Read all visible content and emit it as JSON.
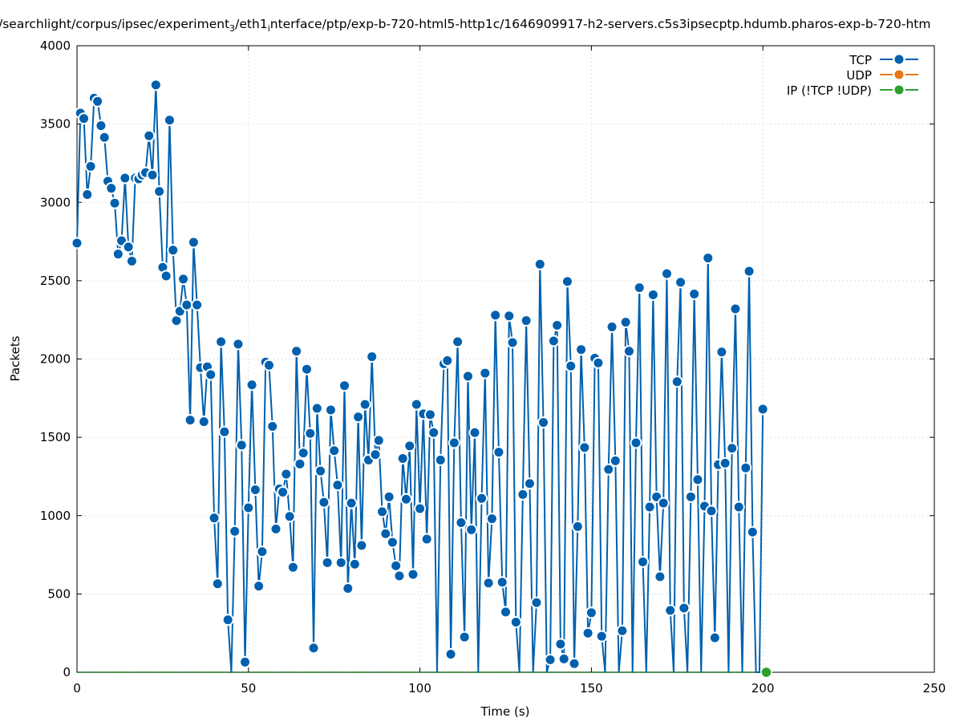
{
  "chart_data": {
    "type": "line",
    "title_parts": [
      "/searchlight/corpus/ipsec/experiment",
      "3",
      "/eth1",
      "i",
      "nterface/ptp/exp-b-720-html5-http1c/1646909917-h2-servers.c5s3ipsecptp.hdumb.pharos-exp-b-720-htm"
    ],
    "xlabel": "Time (s)",
    "ylabel": "Packets",
    "xlim": [
      0,
      250
    ],
    "ylim": [
      0,
      4000
    ],
    "xticks": [
      0,
      50,
      100,
      150,
      200,
      250
    ],
    "yticks": [
      0,
      500,
      1000,
      1500,
      2000,
      2500,
      3000,
      3500,
      4000
    ],
    "xtick_labels": [
      "0",
      "50",
      "100",
      "150",
      "200",
      "250"
    ],
    "ytick_labels": [
      "0",
      "500",
      "1000",
      "1500",
      "2000",
      "2500",
      "3000",
      "3500",
      "4000"
    ],
    "grid": true,
    "legend_placement": "top-right",
    "series": [
      {
        "name": "TCP",
        "color": "#0060ad",
        "x_start": 0,
        "x_step": 1,
        "values": [
          2740,
          3570,
          3535,
          3050,
          3230,
          3665,
          3645,
          3490,
          3415,
          3135,
          3090,
          2995,
          2670,
          2755,
          3155,
          2715,
          2625,
          3155,
          3150,
          3175,
          3190,
          3425,
          3175,
          3750,
          3070,
          2585,
          2530,
          3525,
          2695,
          2245,
          2305,
          2510,
          2345,
          1610,
          2745,
          2345,
          1945,
          1600,
          1950,
          1900,
          985,
          565,
          2110,
          1535,
          335,
          0,
          900,
          2095,
          1450,
          65,
          1050,
          1835,
          1165,
          550,
          770,
          1980,
          1960,
          1570,
          915,
          1170,
          1150,
          1265,
          995,
          670,
          2050,
          1330,
          1400,
          1935,
          1525,
          155,
          1685,
          1285,
          1085,
          700,
          1675,
          1415,
          1195,
          700,
          1830,
          535,
          1080,
          690,
          1630,
          810,
          1710,
          1355,
          2015,
          1390,
          1480,
          1025,
          885,
          1120,
          830,
          680,
          615,
          1365,
          1105,
          1445,
          625,
          1710,
          1045,
          1650,
          850,
          1645,
          1530,
          0,
          1355,
          1970,
          1990,
          115,
          1465,
          2110,
          955,
          225,
          1890,
          910,
          1530,
          0,
          1110,
          1910,
          570,
          980,
          2280,
          1405,
          575,
          385,
          2275,
          2105,
          320,
          0,
          1135,
          2245,
          1205,
          0,
          445,
          2605,
          1595,
          0,
          80,
          2115,
          2215,
          180,
          85,
          2495,
          1955,
          55,
          930,
          2060,
          1435,
          250,
          380,
          2005,
          1975,
          230,
          0,
          1295,
          2205,
          1350,
          0,
          265,
          2235,
          2050,
          0,
          1465,
          2455,
          705,
          0,
          1055,
          2410,
          1120,
          610,
          1080,
          2545,
          395,
          0,
          1855,
          2490,
          410,
          0,
          1120,
          2415,
          1230,
          0,
          1060,
          2645,
          1030,
          220,
          1325,
          2045,
          1335,
          0,
          1430,
          2320,
          1055,
          0,
          1305,
          2560,
          895,
          0,
          0,
          1680
        ]
      },
      {
        "name": "UDP",
        "color": "#e8781a",
        "values": []
      },
      {
        "name": "IP (!TCP  !UDP)",
        "color": "#2ca02c",
        "x_start": 0,
        "x_step": 1,
        "values_all": 0,
        "count": 202
      }
    ]
  }
}
